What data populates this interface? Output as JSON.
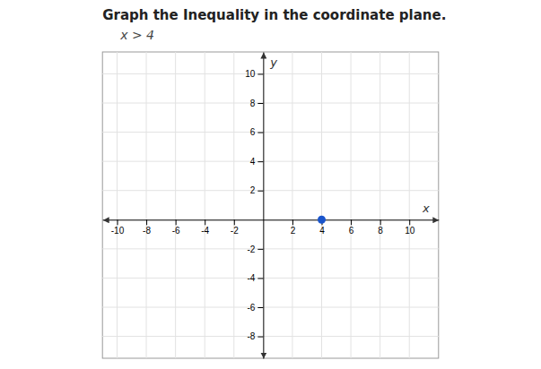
{
  "chart_data": {
    "type": "scatter",
    "title": "Graph the Inequality in the coordinate plane.",
    "subtitle": "x > 4",
    "xlabel": "x",
    "ylabel": "y",
    "x": [
      4
    ],
    "values": [
      0
    ],
    "color": "#1a55cc",
    "xlim": [
      -11,
      12
    ],
    "ylim": [
      -9.5,
      11.5
    ],
    "xticks": [
      -10,
      -8,
      -6,
      -4,
      -2,
      2,
      4,
      6,
      8,
      10
    ],
    "yticks": [
      -8,
      -6,
      -4,
      -2,
      2,
      4,
      6,
      8,
      10
    ],
    "grid": true
  }
}
